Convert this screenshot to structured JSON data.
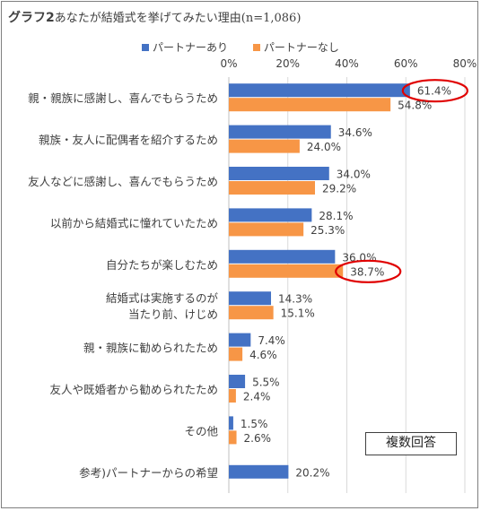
{
  "chart_data": {
    "type": "bar",
    "orientation": "horizontal",
    "title_prefix": "グラフ2",
    "title_main": "あなたが結婚式を挙げてみたい理由",
    "title_n": "(n=1,086)",
    "note": "複数回答",
    "xlim": [
      0,
      80
    ],
    "xticks": [
      "0%",
      "20%",
      "40%",
      "60%",
      "80%"
    ],
    "grid": true,
    "legend_position": "top",
    "categories": [
      [
        "親・親族に感謝し、喜んでもらうため"
      ],
      [
        "親族・友人に配偶者を紹介するため"
      ],
      [
        "友人などに感謝し、喜んでもらうため"
      ],
      [
        "以前から結婚式に憧れていたため"
      ],
      [
        "自分たちが楽しむため"
      ],
      [
        "結婚式は実施するのが",
        "当たり前、けじめ"
      ],
      [
        "親・親族に勧められたため"
      ],
      [
        "友人や既婚者から勧められたため"
      ],
      [
        "その他"
      ],
      [
        "参考)パートナーからの希望"
      ]
    ],
    "series": [
      {
        "name": "パートナーあり",
        "color": "#4472c4",
        "values": [
          61.4,
          34.6,
          34.0,
          28.1,
          36.0,
          14.3,
          7.4,
          5.5,
          1.5,
          20.2
        ],
        "labels": [
          "61.4%",
          "34.6%",
          "34.0%",
          "28.1%",
          "36.0%",
          "14.3%",
          "7.4%",
          "5.5%",
          "1.5%",
          "20.2%"
        ]
      },
      {
        "name": "パートナーなし",
        "color": "#f79646",
        "values": [
          54.8,
          24.0,
          29.2,
          25.3,
          38.7,
          15.1,
          4.6,
          2.4,
          2.6,
          null
        ],
        "labels": [
          "54.8%",
          "24.0%",
          "29.2%",
          "25.3%",
          "38.7%",
          "15.1%",
          "4.6%",
          "2.4%",
          "2.6%",
          null
        ]
      }
    ],
    "highlight_color": "#e00000",
    "highlights": [
      {
        "category": 0,
        "series": 0
      },
      {
        "category": 4,
        "series": 1
      }
    ]
  }
}
